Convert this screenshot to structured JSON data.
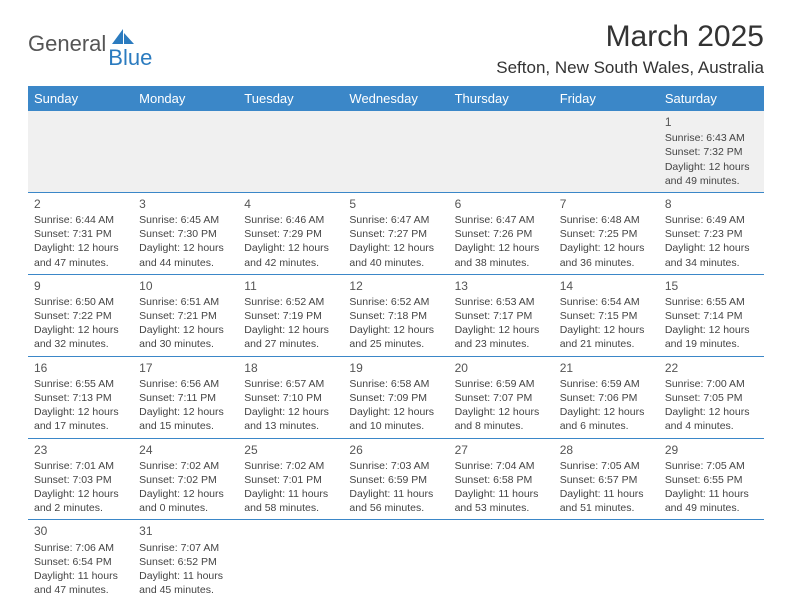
{
  "logo": {
    "text_general": "General",
    "text_blue": "Blue",
    "shape_color": "#2b7bbf"
  },
  "title": {
    "month": "March 2025",
    "location": "Sefton, New South Wales, Australia"
  },
  "colors": {
    "header_bg": "#3b87c8",
    "header_text": "#ffffff",
    "border": "#3b87c8",
    "empty_bg": "#f0f0f0"
  },
  "weekdays": [
    "Sunday",
    "Monday",
    "Tuesday",
    "Wednesday",
    "Thursday",
    "Friday",
    "Saturday"
  ],
  "weeks": [
    [
      null,
      null,
      null,
      null,
      null,
      null,
      {
        "day": "1",
        "sunrise": "Sunrise: 6:43 AM",
        "sunset": "Sunset: 7:32 PM",
        "daylight": "Daylight: 12 hours and 49 minutes."
      }
    ],
    [
      {
        "day": "2",
        "sunrise": "Sunrise: 6:44 AM",
        "sunset": "Sunset: 7:31 PM",
        "daylight": "Daylight: 12 hours and 47 minutes."
      },
      {
        "day": "3",
        "sunrise": "Sunrise: 6:45 AM",
        "sunset": "Sunset: 7:30 PM",
        "daylight": "Daylight: 12 hours and 44 minutes."
      },
      {
        "day": "4",
        "sunrise": "Sunrise: 6:46 AM",
        "sunset": "Sunset: 7:29 PM",
        "daylight": "Daylight: 12 hours and 42 minutes."
      },
      {
        "day": "5",
        "sunrise": "Sunrise: 6:47 AM",
        "sunset": "Sunset: 7:27 PM",
        "daylight": "Daylight: 12 hours and 40 minutes."
      },
      {
        "day": "6",
        "sunrise": "Sunrise: 6:47 AM",
        "sunset": "Sunset: 7:26 PM",
        "daylight": "Daylight: 12 hours and 38 minutes."
      },
      {
        "day": "7",
        "sunrise": "Sunrise: 6:48 AM",
        "sunset": "Sunset: 7:25 PM",
        "daylight": "Daylight: 12 hours and 36 minutes."
      },
      {
        "day": "8",
        "sunrise": "Sunrise: 6:49 AM",
        "sunset": "Sunset: 7:23 PM",
        "daylight": "Daylight: 12 hours and 34 minutes."
      }
    ],
    [
      {
        "day": "9",
        "sunrise": "Sunrise: 6:50 AM",
        "sunset": "Sunset: 7:22 PM",
        "daylight": "Daylight: 12 hours and 32 minutes."
      },
      {
        "day": "10",
        "sunrise": "Sunrise: 6:51 AM",
        "sunset": "Sunset: 7:21 PM",
        "daylight": "Daylight: 12 hours and 30 minutes."
      },
      {
        "day": "11",
        "sunrise": "Sunrise: 6:52 AM",
        "sunset": "Sunset: 7:19 PM",
        "daylight": "Daylight: 12 hours and 27 minutes."
      },
      {
        "day": "12",
        "sunrise": "Sunrise: 6:52 AM",
        "sunset": "Sunset: 7:18 PM",
        "daylight": "Daylight: 12 hours and 25 minutes."
      },
      {
        "day": "13",
        "sunrise": "Sunrise: 6:53 AM",
        "sunset": "Sunset: 7:17 PM",
        "daylight": "Daylight: 12 hours and 23 minutes."
      },
      {
        "day": "14",
        "sunrise": "Sunrise: 6:54 AM",
        "sunset": "Sunset: 7:15 PM",
        "daylight": "Daylight: 12 hours and 21 minutes."
      },
      {
        "day": "15",
        "sunrise": "Sunrise: 6:55 AM",
        "sunset": "Sunset: 7:14 PM",
        "daylight": "Daylight: 12 hours and 19 minutes."
      }
    ],
    [
      {
        "day": "16",
        "sunrise": "Sunrise: 6:55 AM",
        "sunset": "Sunset: 7:13 PM",
        "daylight": "Daylight: 12 hours and 17 minutes."
      },
      {
        "day": "17",
        "sunrise": "Sunrise: 6:56 AM",
        "sunset": "Sunset: 7:11 PM",
        "daylight": "Daylight: 12 hours and 15 minutes."
      },
      {
        "day": "18",
        "sunrise": "Sunrise: 6:57 AM",
        "sunset": "Sunset: 7:10 PM",
        "daylight": "Daylight: 12 hours and 13 minutes."
      },
      {
        "day": "19",
        "sunrise": "Sunrise: 6:58 AM",
        "sunset": "Sunset: 7:09 PM",
        "daylight": "Daylight: 12 hours and 10 minutes."
      },
      {
        "day": "20",
        "sunrise": "Sunrise: 6:59 AM",
        "sunset": "Sunset: 7:07 PM",
        "daylight": "Daylight: 12 hours and 8 minutes."
      },
      {
        "day": "21",
        "sunrise": "Sunrise: 6:59 AM",
        "sunset": "Sunset: 7:06 PM",
        "daylight": "Daylight: 12 hours and 6 minutes."
      },
      {
        "day": "22",
        "sunrise": "Sunrise: 7:00 AM",
        "sunset": "Sunset: 7:05 PM",
        "daylight": "Daylight: 12 hours and 4 minutes."
      }
    ],
    [
      {
        "day": "23",
        "sunrise": "Sunrise: 7:01 AM",
        "sunset": "Sunset: 7:03 PM",
        "daylight": "Daylight: 12 hours and 2 minutes."
      },
      {
        "day": "24",
        "sunrise": "Sunrise: 7:02 AM",
        "sunset": "Sunset: 7:02 PM",
        "daylight": "Daylight: 12 hours and 0 minutes."
      },
      {
        "day": "25",
        "sunrise": "Sunrise: 7:02 AM",
        "sunset": "Sunset: 7:01 PM",
        "daylight": "Daylight: 11 hours and 58 minutes."
      },
      {
        "day": "26",
        "sunrise": "Sunrise: 7:03 AM",
        "sunset": "Sunset: 6:59 PM",
        "daylight": "Daylight: 11 hours and 56 minutes."
      },
      {
        "day": "27",
        "sunrise": "Sunrise: 7:04 AM",
        "sunset": "Sunset: 6:58 PM",
        "daylight": "Daylight: 11 hours and 53 minutes."
      },
      {
        "day": "28",
        "sunrise": "Sunrise: 7:05 AM",
        "sunset": "Sunset: 6:57 PM",
        "daylight": "Daylight: 11 hours and 51 minutes."
      },
      {
        "day": "29",
        "sunrise": "Sunrise: 7:05 AM",
        "sunset": "Sunset: 6:55 PM",
        "daylight": "Daylight: 11 hours and 49 minutes."
      }
    ],
    [
      {
        "day": "30",
        "sunrise": "Sunrise: 7:06 AM",
        "sunset": "Sunset: 6:54 PM",
        "daylight": "Daylight: 11 hours and 47 minutes."
      },
      {
        "day": "31",
        "sunrise": "Sunrise: 7:07 AM",
        "sunset": "Sunset: 6:52 PM",
        "daylight": "Daylight: 11 hours and 45 minutes."
      },
      null,
      null,
      null,
      null,
      null
    ]
  ]
}
